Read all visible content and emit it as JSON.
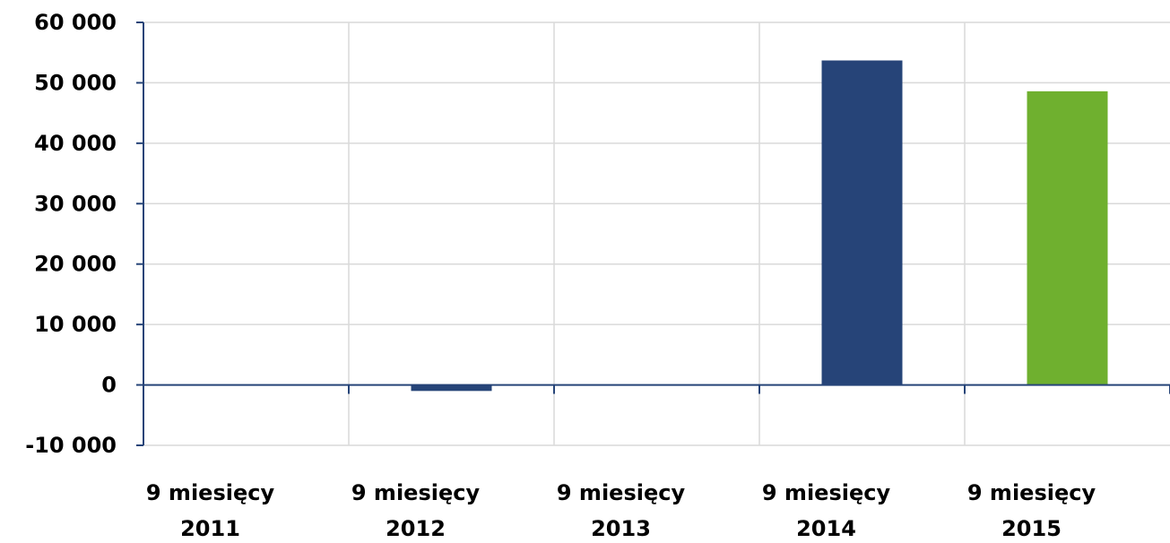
{
  "chart_data": {
    "type": "bar",
    "title": "",
    "xlabel": "",
    "ylabel": "",
    "categories": [
      [
        "9 miesięcy",
        "2011"
      ],
      [
        "9 miesięcy",
        "2012"
      ],
      [
        "9 miesięcy",
        "2013"
      ],
      [
        "9 miesięcy",
        "2014"
      ],
      [
        "9 miesięcy",
        "2015"
      ]
    ],
    "values": [
      0,
      -1000,
      0,
      53700,
      48600
    ],
    "bar_colors": [
      "#264478",
      "#264478",
      "#264478",
      "#264478",
      "#6FB02F"
    ],
    "ylim": [
      -10000,
      60000
    ],
    "yticks": [
      -10000,
      0,
      10000,
      20000,
      30000,
      40000,
      50000,
      60000
    ],
    "ytick_labels": [
      "-10 000",
      "0",
      "10 000",
      "20 000",
      "30 000",
      "40 000",
      "50 000",
      "60 000"
    ],
    "grid": true,
    "legend": "none"
  }
}
